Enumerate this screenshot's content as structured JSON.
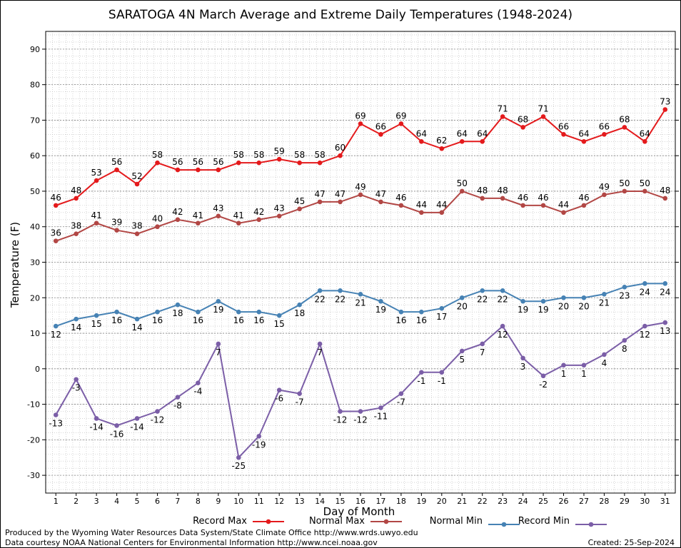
{
  "chart_data": {
    "type": "line",
    "title": "SARATOGA 4N March Average and Extreme Daily Temperatures (1948-2024)",
    "xlabel": "Day of Month",
    "ylabel": "Temperature (F)",
    "ylim": [
      -35,
      95
    ],
    "yticks": [
      -30,
      -20,
      -10,
      0,
      10,
      20,
      30,
      40,
      50,
      60,
      70,
      80,
      90
    ],
    "grid": true,
    "legend_position": "bottom",
    "x": [
      1,
      2,
      3,
      4,
      5,
      6,
      7,
      8,
      9,
      10,
      11,
      12,
      13,
      14,
      15,
      16,
      17,
      18,
      19,
      20,
      21,
      22,
      23,
      24,
      25,
      26,
      27,
      28,
      29,
      30,
      31
    ],
    "series": [
      {
        "name": "Record Max",
        "color": "#e41a1c",
        "label_position": "above",
        "values": [
          46,
          48,
          53,
          56,
          52,
          58,
          56,
          56,
          56,
          58,
          58,
          59,
          58,
          58,
          60,
          69,
          66,
          69,
          64,
          62,
          64,
          64,
          71,
          68,
          71,
          66,
          64,
          66,
          68,
          64,
          73
        ]
      },
      {
        "name": "Normal Max",
        "color": "#b24745",
        "label_position": "above",
        "values": [
          36,
          38,
          41,
          39,
          38,
          40,
          42,
          41,
          43,
          41,
          42,
          43,
          45,
          47,
          47,
          49,
          47,
          46,
          44,
          44,
          50,
          48,
          48,
          46,
          46,
          44,
          46,
          49,
          50,
          50,
          48
        ]
      },
      {
        "name": "Normal Min",
        "color": "#4682b4",
        "label_position": "below",
        "values": [
          12,
          14,
          15,
          16,
          14,
          16,
          18,
          16,
          19,
          16,
          16,
          15,
          18,
          22,
          22,
          21,
          19,
          16,
          16,
          17,
          20,
          22,
          22,
          19,
          19,
          20,
          20,
          21,
          23,
          24,
          24
        ]
      },
      {
        "name": "Record Min",
        "color": "#7b5ea7",
        "label_position": "below",
        "values": [
          -13,
          -3,
          -14,
          -16,
          -14,
          -12,
          -8,
          -4,
          7,
          -25,
          -19,
          -6,
          -7,
          7,
          -12,
          -12,
          -11,
          -7,
          -1,
          -1,
          5,
          7,
          12,
          3,
          -2,
          1,
          1,
          4,
          8,
          12,
          13
        ]
      }
    ]
  },
  "footer": {
    "produced_by": "Produced by the Wyoming Water Resources Data System/State Climate Office http://www.wrds.uwyo.edu",
    "data_courtesy": "Data courtesy NOAA National Centers for Environmental Information http://www.ncei.noaa.gov",
    "created": "Created: 25-Sep-2024"
  }
}
